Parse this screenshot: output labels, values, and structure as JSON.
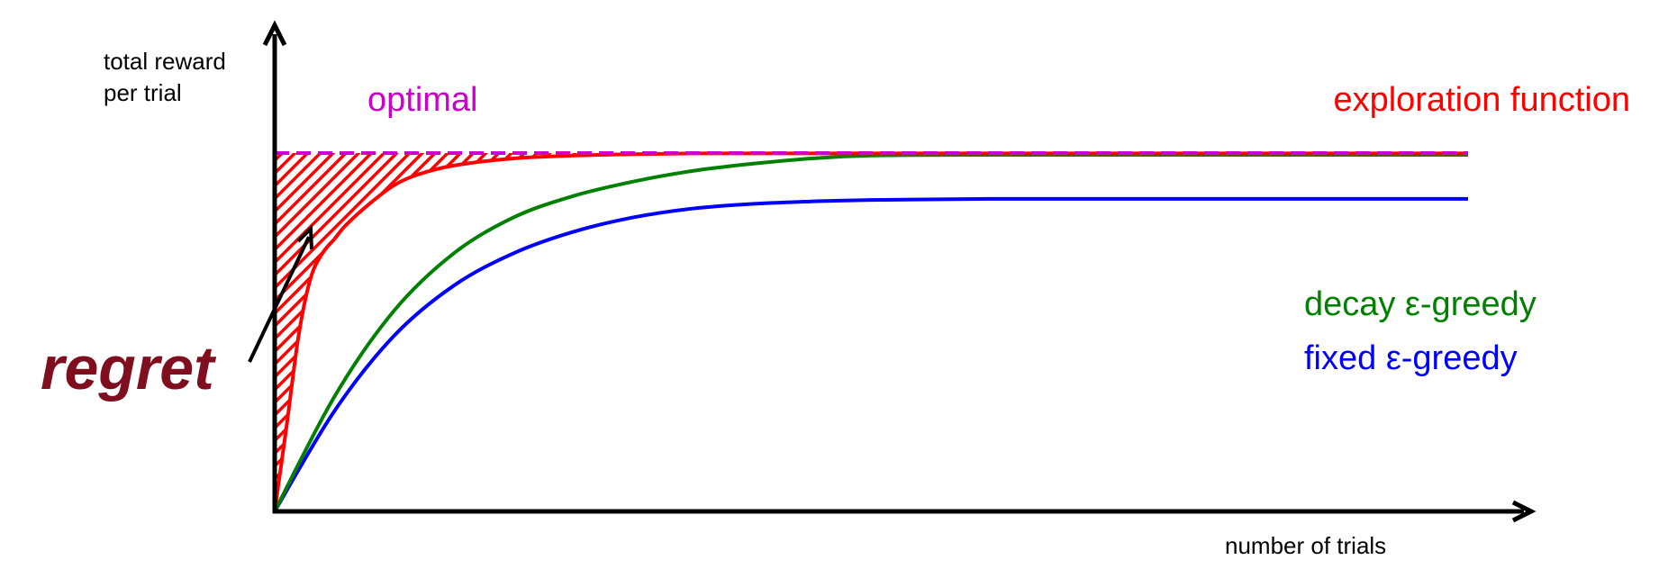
{
  "chart_data": {
    "type": "line",
    "title": "",
    "ylabel_lines": [
      "total reward",
      "per trial"
    ],
    "xlabel": "number of trials",
    "xlim": [
      0,
      100
    ],
    "ylim": [
      0,
      100
    ],
    "grid": false,
    "legend_placement": "right",
    "series": [
      {
        "name": "optimal",
        "color": "#CC00CC",
        "style": "dashed",
        "x": [
          0,
          100
        ],
        "y": [
          100,
          100
        ]
      },
      {
        "name": "exploration function",
        "color": "#FF0000",
        "style": "solid",
        "x": [
          0,
          1,
          2,
          3,
          4,
          5,
          6,
          8,
          10,
          12,
          15,
          20,
          25,
          30,
          35,
          40,
          50,
          60,
          80,
          100
        ],
        "y": [
          0,
          24,
          49,
          65,
          72,
          76,
          80,
          86,
          91,
          94,
          96.5,
          98.5,
          99.3,
          99.7,
          99.9,
          99.9,
          99.9,
          99.9,
          99.9,
          99.9
        ]
      },
      {
        "name": "decay ε-greedy",
        "color": "#008000",
        "style": "solid",
        "x": [
          0,
          5,
          10,
          15,
          20,
          25,
          30,
          35,
          40,
          45,
          50,
          60,
          80,
          100
        ],
        "y": [
          0,
          32,
          56,
          72,
          82,
          88,
          92,
          95,
          97,
          98.5,
          99.3,
          99.5,
          99.5,
          99.5
        ]
      },
      {
        "name": "fixed ε-greedy",
        "color": "#0000FF",
        "style": "solid",
        "x": [
          0,
          5,
          10,
          15,
          20,
          25,
          30,
          35,
          40,
          45,
          50,
          60,
          80,
          100
        ],
        "y": [
          0,
          28,
          49,
          63,
          72,
          78,
          82,
          84.5,
          85.8,
          86.5,
          86.9,
          87.2,
          87.2,
          87.2
        ]
      }
    ],
    "regret_area": {
      "label": "regret",
      "label_color": "#7F0F1F",
      "fill_color": "#FF0000",
      "between": [
        "optimal",
        "exploration function"
      ]
    }
  }
}
